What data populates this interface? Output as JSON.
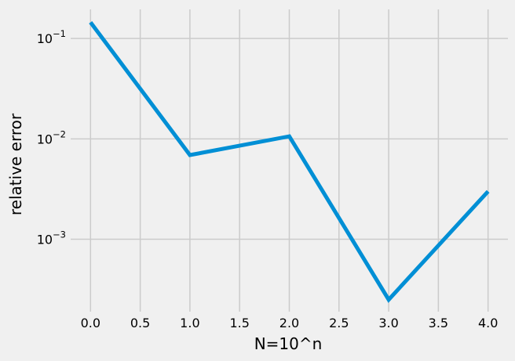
{
  "chart_data": {
    "type": "line",
    "title": "",
    "xlabel": "N=10^n",
    "ylabel": "relative error",
    "y_scale": "log",
    "grid": true,
    "xlim": [
      -0.2,
      4.2
    ],
    "ylim": [
      0.00019,
      0.195
    ],
    "x_ticks": [
      0.0,
      0.5,
      1.0,
      1.5,
      2.0,
      2.5,
      3.0,
      3.5,
      4.0
    ],
    "x_tick_labels": [
      "0.0",
      "0.5",
      "1.0",
      "1.5",
      "2.0",
      "2.5",
      "3.0",
      "3.5",
      "4.0"
    ],
    "y_ticks": [
      0.001,
      0.01,
      0.1
    ],
    "y_tick_labels": [
      {
        "base": "10",
        "exp": "−3"
      },
      {
        "base": "10",
        "exp": "−2"
      },
      {
        "base": "10",
        "exp": "−1"
      }
    ],
    "series": [
      {
        "color": "#008fd5",
        "x": [
          0,
          1,
          2,
          3,
          4
        ],
        "y": [
          0.145,
          0.0069,
          0.0106,
          0.00025,
          0.003
        ]
      }
    ]
  }
}
